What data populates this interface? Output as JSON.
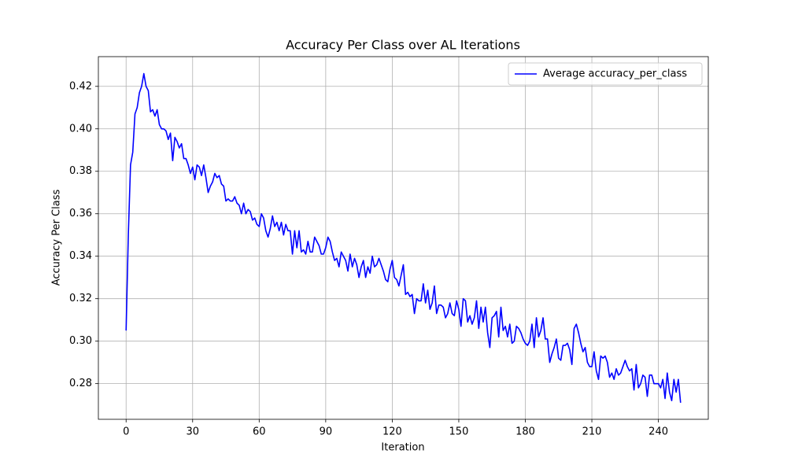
{
  "chart_data": {
    "type": "line",
    "title": "Accuracy Per Class over AL Iterations",
    "x_label": "Iteration",
    "y_label": "Accuracy Per Class",
    "x": [
      0,
      1,
      2,
      3,
      4,
      5,
      6,
      7,
      8,
      9,
      10,
      11,
      12,
      13,
      14,
      15,
      16,
      17,
      18,
      19,
      20,
      21,
      22,
      23,
      24,
      25,
      26,
      27,
      28,
      29,
      30,
      31,
      32,
      33,
      34,
      35,
      36,
      37,
      38,
      39,
      40,
      41,
      42,
      43,
      44,
      45,
      46,
      47,
      48,
      49,
      50,
      51,
      52,
      53,
      54,
      55,
      56,
      57,
      58,
      59,
      60,
      61,
      62,
      63,
      64,
      65,
      66,
      67,
      68,
      69,
      70,
      71,
      72,
      73,
      74,
      75,
      76,
      77,
      78,
      79,
      80,
      81,
      82,
      83,
      84,
      85,
      86,
      87,
      88,
      89,
      90,
      91,
      92,
      93,
      94,
      95,
      96,
      97,
      98,
      99,
      100,
      101,
      102,
      103,
      104,
      105,
      106,
      107,
      108,
      109,
      110,
      111,
      112,
      113,
      114,
      115,
      116,
      117,
      118,
      119,
      120,
      121,
      122,
      123,
      124,
      125,
      126,
      127,
      128,
      129,
      130,
      131,
      132,
      133,
      134,
      135,
      136,
      137,
      138,
      139,
      140,
      141,
      142,
      143,
      144,
      145,
      146,
      147,
      148,
      149,
      150,
      151,
      152,
      153,
      154,
      155,
      156,
      157,
      158,
      159,
      160,
      161,
      162,
      163,
      164,
      165,
      166,
      167,
      168,
      169,
      170,
      171,
      172,
      173,
      174,
      175,
      176,
      177,
      178,
      179,
      180,
      181,
      182,
      183,
      184,
      185,
      186,
      187,
      188,
      189,
      190,
      191,
      192,
      193,
      194,
      195,
      196,
      197,
      198,
      199,
      200,
      201,
      202,
      203,
      204,
      205,
      206,
      207,
      208,
      209,
      210,
      211,
      212,
      213,
      214,
      215,
      216,
      217,
      218,
      219,
      220,
      221,
      222,
      223,
      224,
      225,
      226,
      227,
      228,
      229,
      230,
      231,
      232,
      233,
      234,
      235,
      236,
      237,
      238,
      239,
      240,
      241,
      242,
      243,
      244,
      245,
      246,
      247,
      248,
      249,
      250
    ],
    "series": [
      {
        "name": "Average accuracy_per_class",
        "color": "#0000ff",
        "values": [
          0.305,
          0.35,
          0.383,
          0.389,
          0.407,
          0.41,
          0.417,
          0.42,
          0.426,
          0.42,
          0.418,
          0.408,
          0.409,
          0.406,
          0.409,
          0.402,
          0.4,
          0.4,
          0.399,
          0.395,
          0.398,
          0.385,
          0.396,
          0.394,
          0.391,
          0.393,
          0.386,
          0.386,
          0.383,
          0.379,
          0.382,
          0.376,
          0.383,
          0.382,
          0.378,
          0.383,
          0.377,
          0.37,
          0.373,
          0.375,
          0.379,
          0.377,
          0.378,
          0.374,
          0.373,
          0.366,
          0.367,
          0.366,
          0.366,
          0.368,
          0.365,
          0.364,
          0.36,
          0.365,
          0.36,
          0.362,
          0.361,
          0.357,
          0.358,
          0.355,
          0.354,
          0.36,
          0.358,
          0.352,
          0.349,
          0.353,
          0.359,
          0.354,
          0.356,
          0.352,
          0.356,
          0.35,
          0.355,
          0.352,
          0.352,
          0.341,
          0.352,
          0.344,
          0.352,
          0.342,
          0.343,
          0.341,
          0.347,
          0.342,
          0.342,
          0.349,
          0.347,
          0.345,
          0.341,
          0.341,
          0.344,
          0.349,
          0.347,
          0.342,
          0.338,
          0.339,
          0.335,
          0.342,
          0.34,
          0.338,
          0.333,
          0.341,
          0.335,
          0.339,
          0.336,
          0.33,
          0.335,
          0.338,
          0.33,
          0.335,
          0.332,
          0.34,
          0.335,
          0.336,
          0.339,
          0.336,
          0.333,
          0.329,
          0.328,
          0.334,
          0.338,
          0.33,
          0.329,
          0.326,
          0.331,
          0.336,
          0.322,
          0.323,
          0.321,
          0.322,
          0.313,
          0.32,
          0.319,
          0.319,
          0.327,
          0.318,
          0.324,
          0.315,
          0.318,
          0.326,
          0.313,
          0.317,
          0.317,
          0.316,
          0.311,
          0.313,
          0.318,
          0.313,
          0.312,
          0.319,
          0.315,
          0.307,
          0.32,
          0.319,
          0.309,
          0.312,
          0.308,
          0.311,
          0.319,
          0.306,
          0.316,
          0.309,
          0.316,
          0.304,
          0.297,
          0.311,
          0.312,
          0.314,
          0.302,
          0.316,
          0.305,
          0.307,
          0.302,
          0.308,
          0.299,
          0.3,
          0.307,
          0.306,
          0.304,
          0.301,
          0.299,
          0.298,
          0.3,
          0.308,
          0.297,
          0.311,
          0.302,
          0.305,
          0.311,
          0.301,
          0.301,
          0.29,
          0.294,
          0.297,
          0.301,
          0.292,
          0.291,
          0.298,
          0.298,
          0.299,
          0.296,
          0.289,
          0.306,
          0.308,
          0.304,
          0.299,
          0.295,
          0.297,
          0.29,
          0.288,
          0.288,
          0.295,
          0.286,
          0.282,
          0.293,
          0.292,
          0.293,
          0.29,
          0.283,
          0.285,
          0.282,
          0.287,
          0.284,
          0.285,
          0.288,
          0.291,
          0.288,
          0.286,
          0.287,
          0.277,
          0.289,
          0.278,
          0.28,
          0.284,
          0.283,
          0.274,
          0.284,
          0.284,
          0.28,
          0.28,
          0.28,
          0.278,
          0.282,
          0.273,
          0.285,
          0.276,
          0.272,
          0.282,
          0.276,
          0.282,
          0.271
        ]
      }
    ],
    "xlim": [
      -12.5,
      262.5
    ],
    "xticks": [
      0,
      30,
      60,
      90,
      120,
      150,
      180,
      210,
      240
    ],
    "ylim": [
      0.2632,
      0.434
    ],
    "yticks": [
      0.28,
      {
        "value": 0.3,
        "label": "0.30"
      },
      0.32,
      0.34,
      0.36,
      0.38,
      {
        "value": 0.4,
        "label": "0.40"
      },
      0.42
    ],
    "grid": true,
    "legend": "upper right"
  }
}
